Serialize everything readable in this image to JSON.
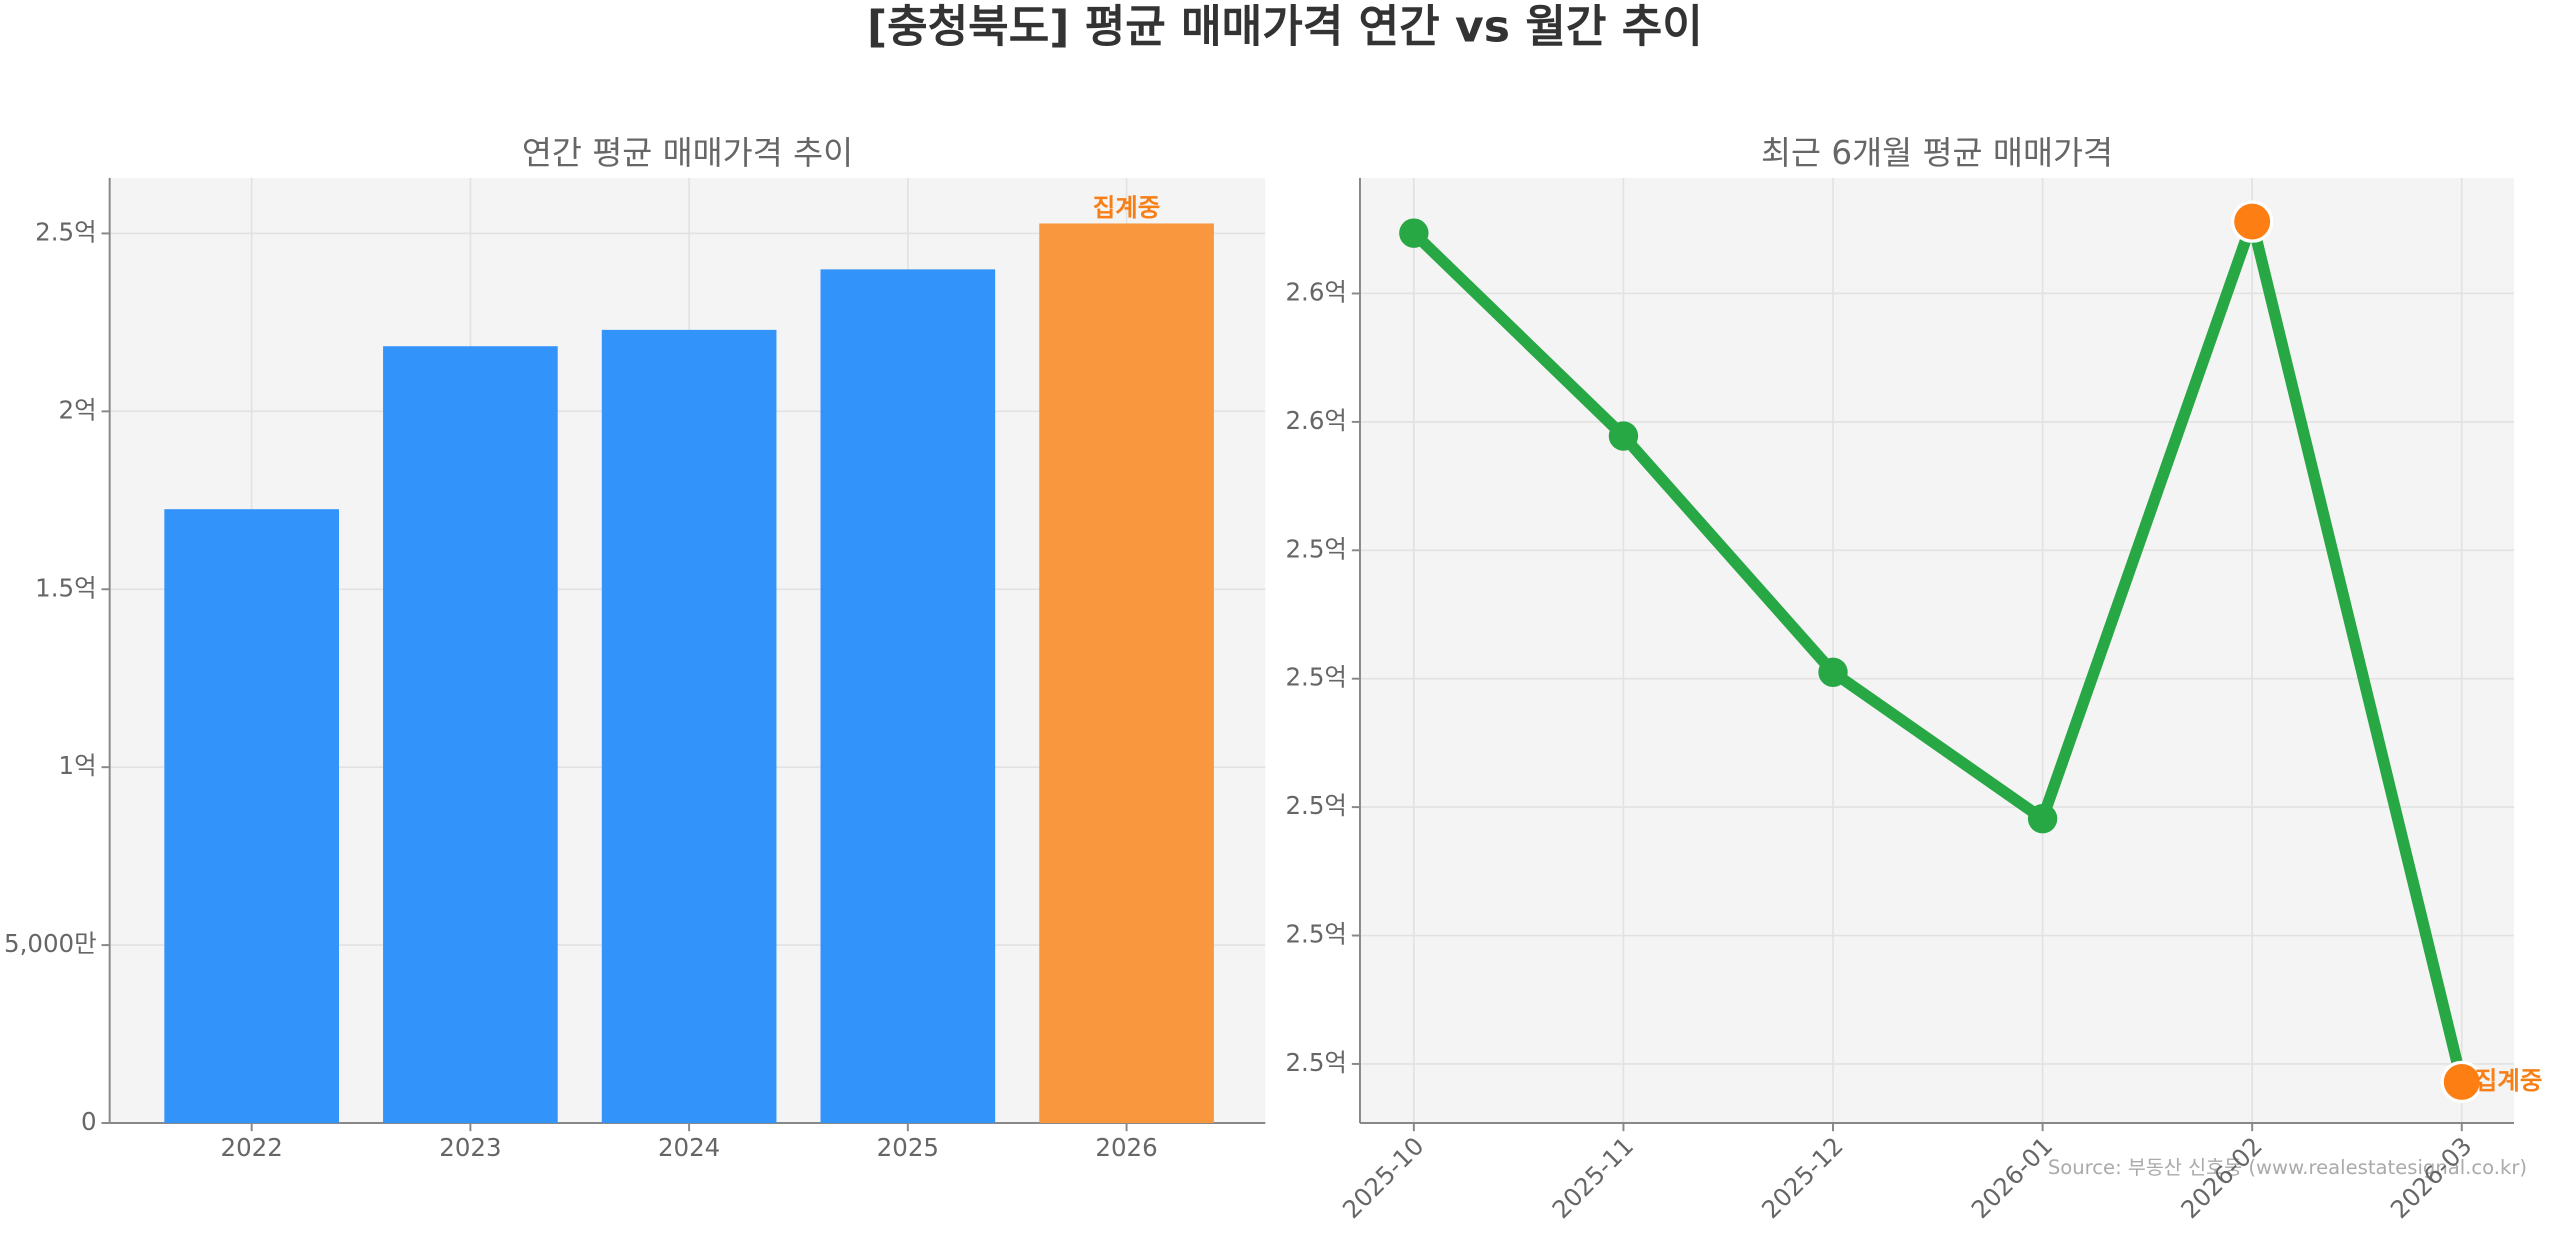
{
  "title": "[충청북도] 평균 매매가격 연간 vs 월간 추이",
  "source": "Source: 부동산 신호등 (www.realestatesignal.co.kr)",
  "chart_data": [
    {
      "type": "bar",
      "title": "연간 평균 매매가격 추이",
      "categories": [
        "2022",
        "2023",
        "2024",
        "2025",
        "2026"
      ],
      "values": [
        172500000,
        218300000,
        222900000,
        239900000,
        252800000
      ],
      "colors": [
        "#3293fa",
        "#3293fa",
        "#3293fa",
        "#3293fa",
        "#f9973f"
      ],
      "annotation": "집계중",
      "annotation_color": "#f77f16",
      "ylim": [
        0,
        265600000
      ],
      "yticks": [
        0,
        {
          "value": 50000000,
          "label": "5,000만"
        },
        {
          "value": 100000000,
          "label": "1억"
        },
        {
          "value": 150000000,
          "label": "1.5억"
        },
        {
          "value": 200000000,
          "label": "2억"
        },
        {
          "value": 250000000,
          "label": "2.5억"
        }
      ],
      "grid": true
    },
    {
      "type": "line",
      "title": "최근 6개월 평균 매매가격",
      "categories": [
        "2025-10",
        "2025-11",
        "2025-12",
        "2026-01",
        "2026-02",
        "2026-03"
      ],
      "values": [
        256470000,
        254890000,
        253050000,
        251910000,
        256560000,
        249860000
      ],
      "color": "#28a745",
      "marker_colors": [
        "#28a745",
        "#28a745",
        "#28a745",
        "#28a745",
        "#fd7f14",
        "#fd7f14"
      ],
      "annotation": "집계중",
      "annotation_color": "#f77f16",
      "ylim": [
        249540000,
        256900000
      ],
      "yticks": [
        {
          "value": 250000000,
          "label": "2.5억"
        },
        {
          "value": 251000000,
          "label": "2.5억"
        },
        {
          "value": 252000000,
          "label": "2.5억"
        },
        {
          "value": 253000000,
          "label": "2.5억"
        },
        {
          "value": 254000000,
          "label": "2.5억"
        },
        {
          "value": 255000000,
          "label": "2.6억"
        },
        {
          "value": 256000000,
          "label": "2.6억"
        }
      ],
      "grid": true
    }
  ]
}
